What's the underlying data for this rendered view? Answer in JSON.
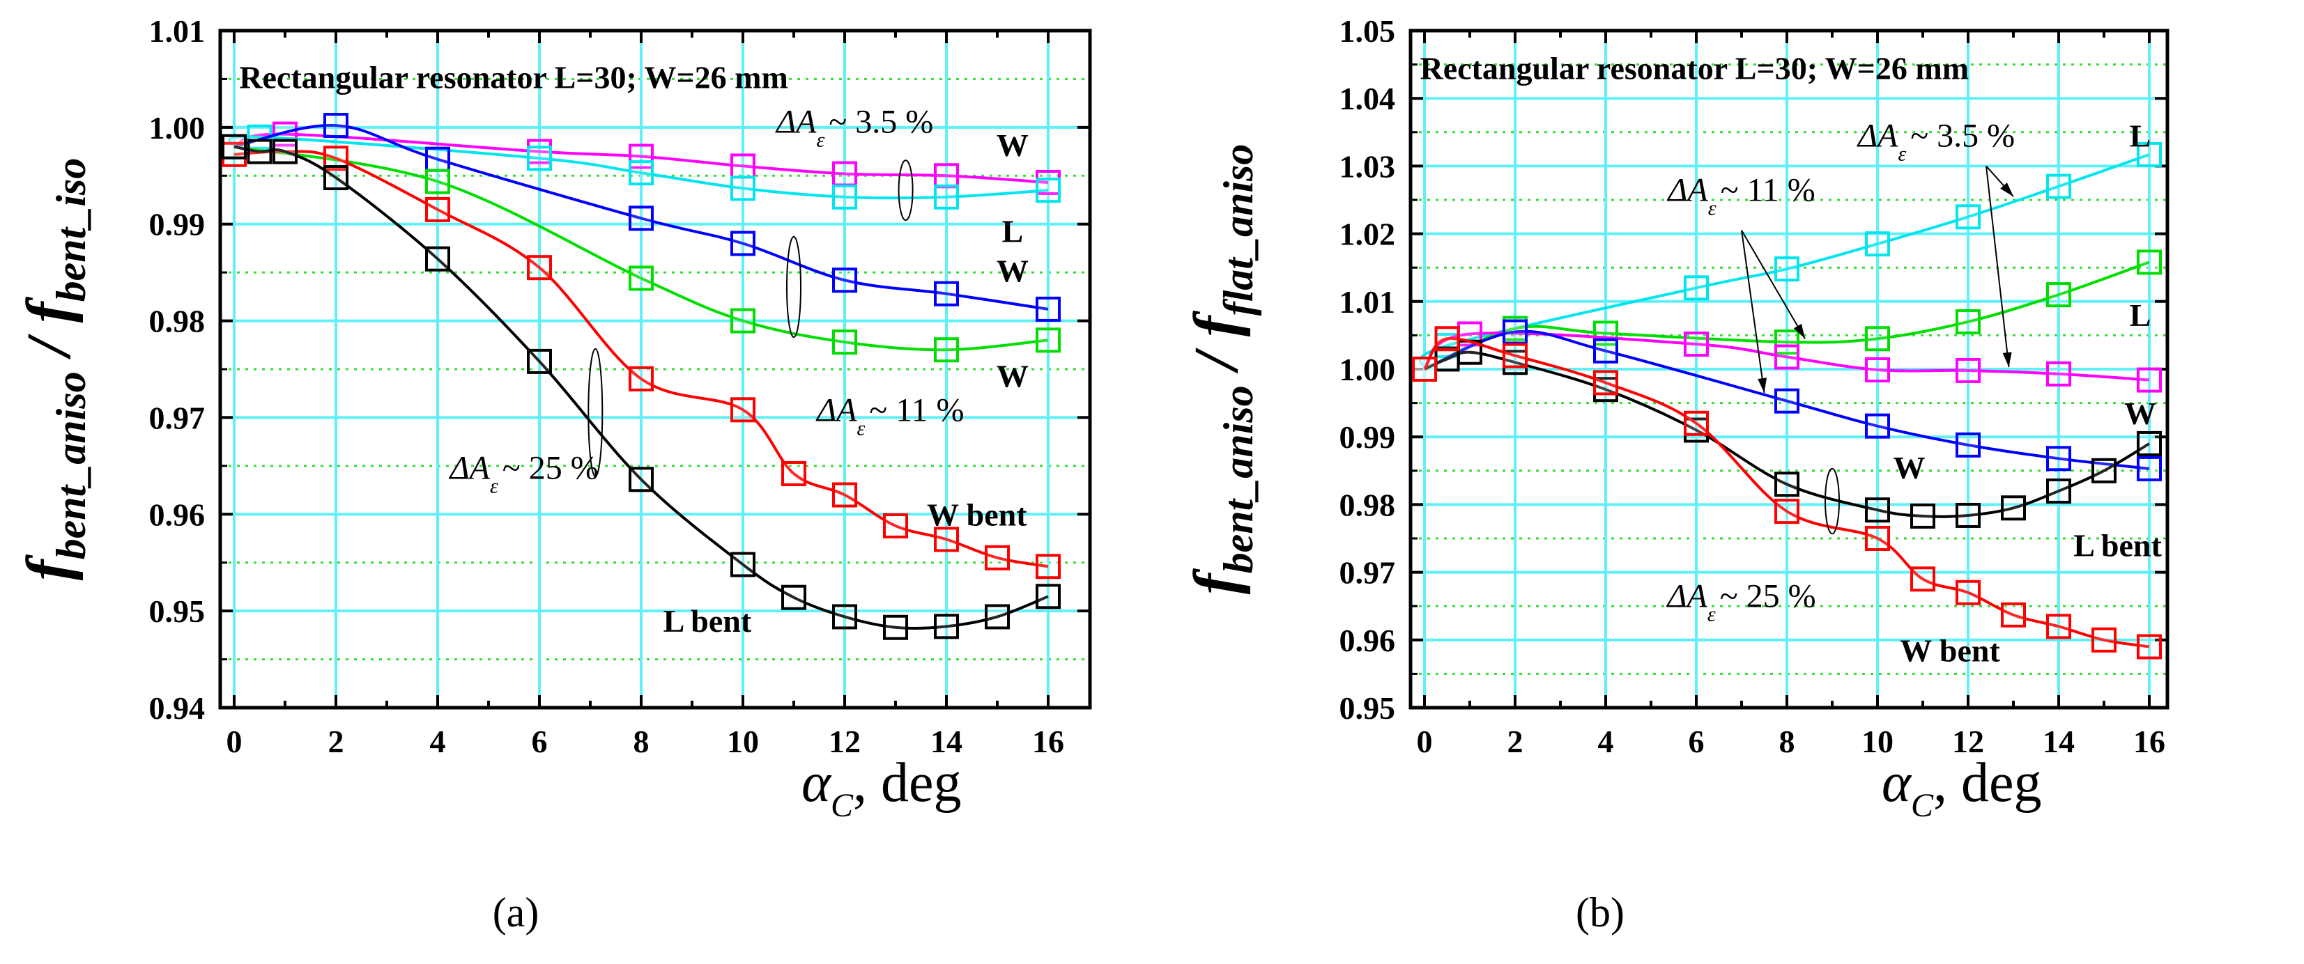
{
  "chart_data": [
    {
      "type": "line",
      "panel_label": "(a)",
      "title": "Rectangular resonator L=30; W=26 mm",
      "xlabel": {
        "symbol": "α",
        "sub": "C",
        "rest": ", deg"
      },
      "ylabel": {
        "f1": "f",
        "sub1": "bent_aniso",
        "slash": " / ",
        "f2": "f",
        "sub2": "bent_iso"
      },
      "xlim": [
        -0.6,
        16.7
      ],
      "ylim": [
        0.94,
        1.01
      ],
      "xticks": [
        "0",
        "2",
        "4",
        "6",
        "8",
        "10",
        "12",
        "14",
        "16"
      ],
      "yticks": [
        "0.94",
        "0.95",
        "0.96",
        "0.97",
        "0.98",
        "0.99",
        "1.00",
        "1.01"
      ],
      "grid": true,
      "series": [
        {
          "name": "W (ΔAε ~ 3.5 %)",
          "color": "#ff00ff",
          "x": [
            0,
            1,
            6,
            8,
            10,
            12,
            14,
            16
          ],
          "y": [
            0.998,
            0.9993,
            0.9975,
            0.997,
            0.996,
            0.9952,
            0.995,
            0.9943
          ]
        },
        {
          "name": "L (ΔAε ~ 3.5 %)",
          "color": "#00e5ee",
          "x": [
            0,
            0.5,
            6,
            8,
            10,
            12,
            14,
            16
          ],
          "y": [
            0.998,
            0.999,
            0.9968,
            0.9953,
            0.9937,
            0.9928,
            0.9928,
            0.9935
          ]
        },
        {
          "name": "W (ΔAε ~ 11 %)",
          "color": "#0000ff",
          "x": [
            0,
            2,
            4,
            8,
            10,
            12,
            14,
            16
          ],
          "y": [
            0.998,
            1.0002,
            0.9967,
            0.9906,
            0.988,
            0.9842,
            0.9828,
            0.9812
          ]
        },
        {
          "name": "W (ΔAε ~ 11 %) green",
          "color": "#00dd00",
          "x": [
            0,
            4,
            8,
            10,
            12,
            14,
            16
          ],
          "y": [
            0.998,
            0.9944,
            0.9844,
            0.98,
            0.9778,
            0.977,
            0.978
          ]
        },
        {
          "name": "W bent",
          "color": "#ff0000",
          "x": [
            0,
            1,
            2,
            4,
            6,
            8,
            10,
            11,
            12,
            13,
            14,
            15,
            16
          ],
          "y": [
            0.9972,
            0.9975,
            0.9968,
            0.9915,
            0.9855,
            0.974,
            0.9708,
            0.9642,
            0.962,
            0.9588,
            0.9574,
            0.9555,
            0.9546
          ]
        },
        {
          "name": "L bent",
          "color": "#000000",
          "x": [
            0,
            0.5,
            1,
            2,
            4,
            6,
            8,
            10,
            11,
            12,
            13,
            14,
            15,
            16
          ],
          "y": [
            0.998,
            0.9975,
            0.9975,
            0.9948,
            0.9864,
            0.9758,
            0.9636,
            0.9548,
            0.9514,
            0.9494,
            0.9483,
            0.9484,
            0.9494,
            0.9515
          ]
        }
      ],
      "annotations": [
        {
          "text": "W"
        },
        {
          "text": "L"
        },
        {
          "text": "W"
        },
        {
          "text": "W"
        },
        {
          "text": "W bent"
        },
        {
          "text": "L bent"
        },
        {
          "delta": "ΔA",
          "sub": "ε",
          "rest": "~ 3.5 %"
        },
        {
          "delta": "ΔA",
          "sub": "ε",
          "rest": "~ 11 %"
        },
        {
          "delta": "ΔA",
          "sub": "ε",
          "rest": "~ 25 %"
        }
      ]
    },
    {
      "type": "line",
      "panel_label": "(b)",
      "title": "Rectangular resonator L=30; W=26 mm",
      "xlabel": {
        "symbol": "α",
        "sub": "C",
        "rest": ", deg"
      },
      "ylabel": {
        "f1": "f",
        "sub1": "bent_aniso",
        "slash": " / ",
        "f2": "f",
        "sub2": "flat_aniso"
      },
      "xlim": [
        -0.4,
        16.5
      ],
      "ylim": [
        0.95,
        1.05
      ],
      "xticks": [
        "0",
        "2",
        "4",
        "6",
        "8",
        "10",
        "12",
        "14",
        "16"
      ],
      "yticks": [
        "0.95",
        "0.96",
        "0.97",
        "0.98",
        "0.99",
        "1.00",
        "1.01",
        "1.02",
        "1.03",
        "1.04",
        "1.05"
      ],
      "grid": true,
      "series": [
        {
          "name": "L (ΔAε ~ 3.5 %)",
          "color": "#00e5ee",
          "x": [
            0,
            0.5,
            6,
            8,
            10,
            12,
            14,
            16
          ],
          "y": [
            1.0,
            1.0035,
            1.012,
            1.0148,
            1.0185,
            1.0225,
            1.027,
            1.0317
          ]
        },
        {
          "name": "L (ΔAε ~ 11 %)",
          "color": "#00dd00",
          "x": [
            0,
            2,
            4,
            8,
            10,
            12,
            14,
            16
          ],
          "y": [
            1.0,
            1.006,
            1.0053,
            1.004,
            1.0045,
            1.007,
            1.011,
            1.0158
          ]
        },
        {
          "name": "W (ΔAε ~ 3.5 %)",
          "color": "#ff00ff",
          "x": [
            0,
            1,
            6,
            8,
            10,
            12,
            14,
            16
          ],
          "y": [
            1.0,
            1.0052,
            1.0037,
            1.0018,
            0.9999,
            0.9998,
            0.9993,
            0.9984
          ]
        },
        {
          "name": "W (ΔAε ~ 11 %)",
          "color": "#0000ff",
          "x": [
            0,
            2,
            4,
            8,
            10,
            12,
            14,
            16
          ],
          "y": [
            1.0,
            1.0055,
            1.0027,
            0.9953,
            0.9916,
            0.9888,
            0.9868,
            0.9853
          ]
        },
        {
          "name": "L bent",
          "color": "#000000",
          "x": [
            0,
            0.5,
            1,
            2,
            4,
            6,
            8,
            10,
            11,
            12,
            13,
            14,
            15,
            16
          ],
          "y": [
            1.0,
            1.0015,
            1.0025,
            1.001,
            0.997,
            0.991,
            0.983,
            0.9792,
            0.9783,
            0.9784,
            0.9795,
            0.982,
            0.985,
            0.989
          ]
        },
        {
          "name": "W bent",
          "color": "#ff0000",
          "x": [
            0,
            0.5,
            2,
            4,
            6,
            8,
            10,
            11,
            12,
            13,
            14,
            15,
            16
          ],
          "y": [
            1.0,
            1.0045,
            1.002,
            0.998,
            0.992,
            0.979,
            0.975,
            0.969,
            0.967,
            0.9637,
            0.962,
            0.96,
            0.959
          ]
        }
      ],
      "annotations": [
        {
          "text": "L"
        },
        {
          "text": "L"
        },
        {
          "text": "W"
        },
        {
          "text": "W"
        },
        {
          "text": "L bent"
        },
        {
          "text": "W bent"
        },
        {
          "delta": "ΔA",
          "sub": "ε",
          "rest": "~ 3.5 %"
        },
        {
          "delta": "ΔA",
          "sub": "ε",
          "rest": "~ 11 %"
        },
        {
          "delta": "ΔA",
          "sub": "ε",
          "rest": "~ 25 %"
        }
      ]
    }
  ]
}
